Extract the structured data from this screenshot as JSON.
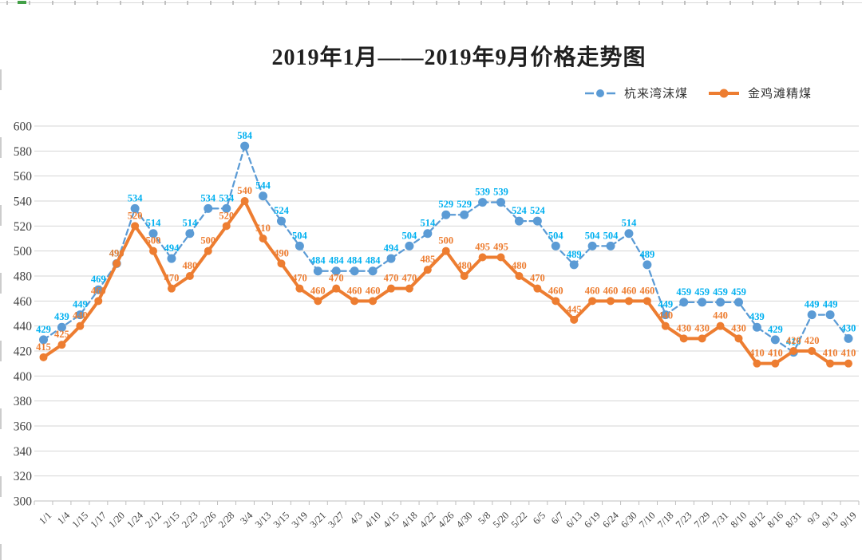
{
  "title": "2019年1月——2019年9月价格走势图",
  "chart_data": {
    "type": "line",
    "title": "2019年1月——2019年9月价格走势图",
    "categories": [
      "1/1",
      "1/4",
      "1/15",
      "1/17",
      "1/20",
      "1/24",
      "2/12",
      "2/15",
      "2/23",
      "2/26",
      "2/28",
      "3/4",
      "3/13",
      "3/15",
      "3/19",
      "3/21",
      "3/27",
      "4/3",
      "4/10",
      "4/15",
      "4/18",
      "4/22",
      "4/26",
      "4/30",
      "5/8",
      "5/20",
      "5/22",
      "6/5",
      "6/7",
      "6/13",
      "6/19",
      "6/24",
      "6/30",
      "7/10",
      "7/18",
      "7/23",
      "7/29",
      "7/31",
      "8/10",
      "8/12",
      "8/16",
      "8/31",
      "9/3",
      "9/13",
      "9/19"
    ],
    "series": [
      {
        "name": "杭来湾沫煤",
        "values": [
          429,
          439,
          449,
          469,
          490,
          534,
          514,
          494,
          514,
          534,
          534,
          584,
          544,
          524,
          504,
          484,
          484,
          484,
          484,
          494,
          504,
          514,
          529,
          529,
          539,
          539,
          524,
          524,
          504,
          489,
          504,
          504,
          514,
          489,
          449,
          459,
          459,
          459,
          459,
          439,
          429,
          419,
          449,
          449,
          430
        ],
        "line_color": "#5B9BD5",
        "label_color": "#00B0F0",
        "line_style": "dashed"
      },
      {
        "name": "金鸡滩精煤",
        "values": [
          415,
          425,
          440,
          460,
          490,
          520,
          500,
          470,
          480,
          500,
          520,
          540,
          510,
          490,
          470,
          460,
          470,
          460,
          460,
          470,
          470,
          485,
          500,
          480,
          495,
          495,
          480,
          470,
          460,
          445,
          460,
          460,
          460,
          460,
          440,
          430,
          430,
          440,
          430,
          410,
          410,
          420,
          420,
          410,
          410
        ],
        "line_color": "#ED7D31",
        "label_color": "#ED7D31",
        "line_style": "solid"
      }
    ],
    "ylim": [
      300,
      600
    ],
    "ytick_step": 20,
    "yticks": [
      300,
      320,
      340,
      360,
      380,
      400,
      420,
      440,
      460,
      480,
      500,
      520,
      540,
      560,
      580,
      600
    ],
    "grid": true,
    "legend_position": "top-right",
    "xlabel": "",
    "ylabel": "",
    "colors": {
      "gridline": "#d6d6d6",
      "axis_line": "#bfbfbf",
      "axis_text": "#404040"
    }
  }
}
